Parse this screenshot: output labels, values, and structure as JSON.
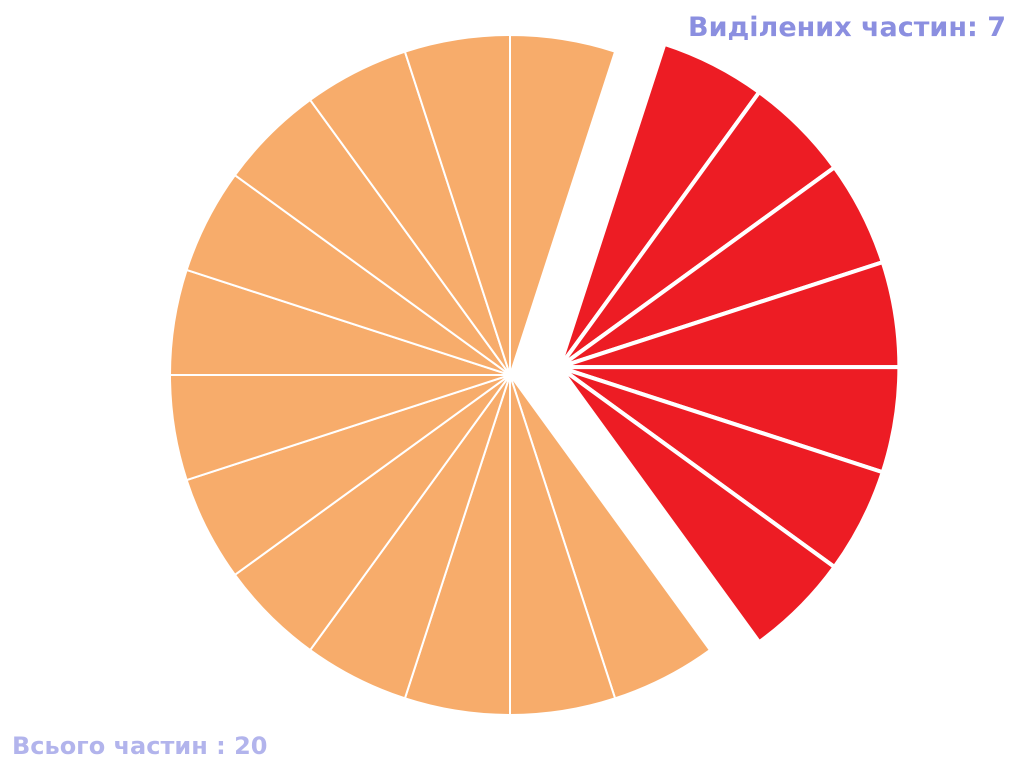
{
  "labels": {
    "selected": "Виділених частин: 7",
    "total": "Всього частин : 20"
  },
  "fraction": {
    "total_parts": 20,
    "selected_parts": 7,
    "colors": {
      "selected": "#ed1c24",
      "unselected": "#f7ac6b",
      "separator": "#ffffff"
    }
  }
}
